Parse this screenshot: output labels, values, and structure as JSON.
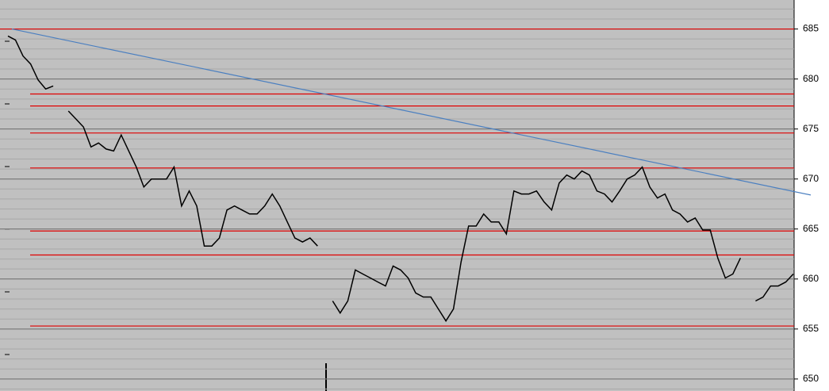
{
  "chart_data": {
    "type": "line",
    "values": [
      684.3,
      683.9,
      682.3,
      681.5,
      679.9,
      679.0,
      679.3,
      null,
      676.8,
      676.0,
      675.2,
      673.2,
      673.6,
      673.0,
      672.8,
      674.4,
      672.8,
      671.2,
      669.2,
      670.0,
      670.0,
      670.0,
      671.2,
      667.3,
      668.8,
      667.3,
      663.3,
      663.3,
      664.1,
      666.9,
      667.3,
      666.9,
      666.5,
      666.5,
      667.3,
      668.5,
      667.3,
      665.7,
      664.1,
      663.7,
      664.1,
      663.3,
      null,
      657.8,
      656.6,
      657.8,
      660.9,
      660.5,
      660.1,
      659.7,
      659.3,
      661.3,
      660.9,
      660.1,
      658.6,
      658.2,
      658.2,
      657.0,
      655.8,
      657.0,
      661.7,
      665.3,
      665.3,
      666.5,
      665.7,
      665.7,
      664.5,
      668.8,
      668.5,
      668.5,
      668.8,
      667.7,
      666.9,
      669.6,
      670.4,
      670.0,
      670.8,
      670.4,
      668.8,
      668.5,
      667.7,
      668.8,
      670.0,
      670.4,
      671.2,
      669.2,
      668.1,
      668.5,
      666.9,
      666.5,
      665.7,
      666.1,
      664.9,
      664.9,
      662.1,
      660.1,
      660.5,
      662.1,
      null,
      657.8,
      658.2,
      659.3,
      659.3,
      659.7,
      660.5
    ],
    "color": "#000000",
    "ylim": [
      648.8,
      687.9
    ],
    "yticks": [
      650,
      655,
      660,
      665,
      670,
      675,
      680,
      685
    ],
    "grid": true,
    "minor_grid_step": 1,
    "reference_lines": {
      "color": "#e00000",
      "values": [
        685,
        678.5,
        677.3,
        674.6,
        671.1,
        664.8,
        662.4,
        655.3
      ]
    },
    "trend_line": {
      "color": "#4a7fc0",
      "values": [
        685,
        668.4
      ]
    }
  }
}
